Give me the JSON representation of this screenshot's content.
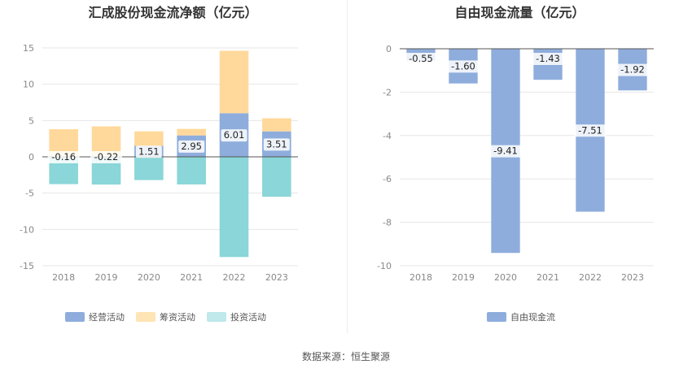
{
  "source_text": "数据来源：恒生聚源",
  "chart_data": [
    {
      "type": "bar",
      "stacked": true,
      "title": "汇成股份现金流净额（亿元）",
      "categories": [
        "2018",
        "2019",
        "2020",
        "2021",
        "2022",
        "2023"
      ],
      "ylim": [
        -15,
        15
      ],
      "yticks": [
        15,
        10,
        5,
        0,
        -5,
        -10,
        -15
      ],
      "grid": true,
      "legend_position": "bottom",
      "series": [
        {
          "name": "经营活动",
          "color": "#8eaddc",
          "values": [
            -0.16,
            -0.22,
            1.51,
            2.95,
            6.01,
            3.51
          ],
          "labels": [
            "-0.16",
            "-0.22",
            "1.51",
            "2.95",
            "6.01",
            "3.51"
          ]
        },
        {
          "name": "筹资活动",
          "color": "#ffd99b",
          "values": [
            3.8,
            4.2,
            2.0,
            0.9,
            8.6,
            1.8
          ]
        },
        {
          "name": "投资活动",
          "color": "#8ad6d8",
          "values": [
            -3.6,
            -3.6,
            -3.2,
            -3.8,
            -13.8,
            -5.5
          ]
        }
      ]
    },
    {
      "type": "bar",
      "title": "自由现金流量（亿元）",
      "categories": [
        "2018",
        "2019",
        "2020",
        "2021",
        "2022",
        "2023"
      ],
      "ylim": [
        -10,
        0
      ],
      "yticks": [
        0,
        -2,
        -4,
        -6,
        -8,
        -10
      ],
      "grid": true,
      "legend_position": "bottom",
      "series": [
        {
          "name": "自由现金流",
          "color": "#8eaddc",
          "values": [
            -0.55,
            -1.6,
            -9.41,
            -1.43,
            -7.51,
            -1.92
          ],
          "labels": [
            "-0.55",
            "-1.60",
            "-9.41",
            "-1.43",
            "-7.51",
            "-1.92"
          ]
        }
      ]
    }
  ]
}
